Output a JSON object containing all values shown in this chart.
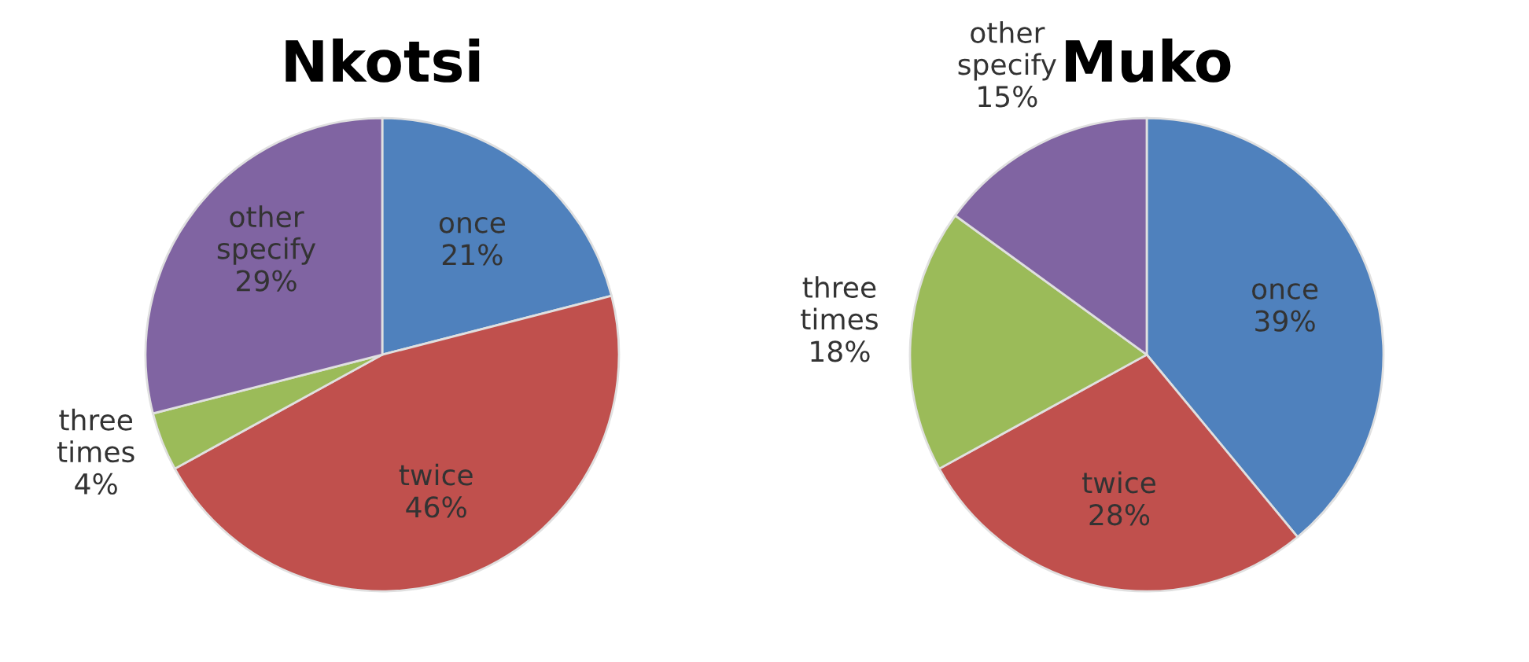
{
  "chart_data": [
    {
      "type": "pie",
      "title": "Nkotsi",
      "categories": [
        "once",
        "twice",
        "three times",
        "other specify"
      ],
      "values": [
        21,
        46,
        4,
        29
      ],
      "value_labels": [
        "21%",
        "46%",
        "4%",
        "29%"
      ],
      "colors": [
        "#4f81bd",
        "#c0504d",
        "#9bbb59",
        "#8064a2"
      ]
    },
    {
      "type": "pie",
      "title": "Muko",
      "categories": [
        "once",
        "twice",
        "three times",
        "other specify"
      ],
      "values": [
        39,
        28,
        18,
        15
      ],
      "value_labels": [
        "39%",
        "28%",
        "18%",
        "15%"
      ],
      "colors": [
        "#4f81bd",
        "#c0504d",
        "#9bbb59",
        "#8064a2"
      ]
    }
  ]
}
